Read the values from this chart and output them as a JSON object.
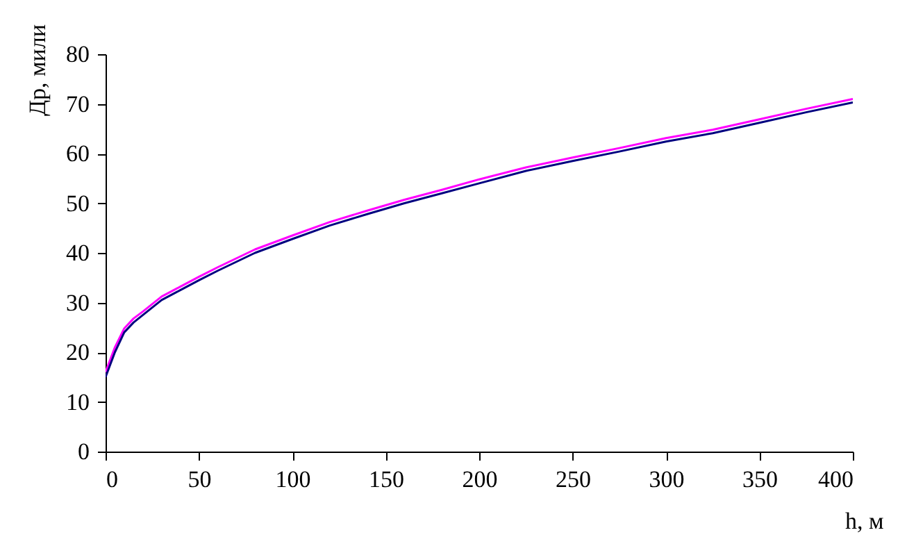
{
  "chart_data": {
    "type": "line",
    "xlabel": "h, м",
    "ylabel": "Др, мили",
    "x": [
      0,
      5,
      10,
      15,
      20,
      30,
      40,
      50,
      60,
      80,
      100,
      120,
      140,
      160,
      180,
      200,
      225,
      250,
      275,
      300,
      325,
      350,
      375,
      400
    ],
    "series": [
      {
        "color": "#ff00ff",
        "values": [
          16,
          21,
          24.8,
          26.8,
          28.2,
          31.2,
          33.2,
          35.2,
          37.1,
          40.7,
          43.5,
          46.2,
          48.5,
          50.7,
          52.7,
          54.8,
          57.2,
          59.2,
          61.1,
          63.1,
          64.8,
          66.9,
          69,
          71
        ]
      },
      {
        "color": "#000080",
        "values": [
          15,
          20,
          24,
          26,
          27.5,
          30.5,
          32.5,
          34.5,
          36.4,
          40,
          42.8,
          45.5,
          47.8,
          50,
          52,
          54,
          56.5,
          58.5,
          60.4,
          62.4,
          64.1,
          66.2,
          68.3,
          70.3
        ]
      }
    ],
    "xlim": [
      0,
      400
    ],
    "xticks": [
      0,
      50,
      100,
      150,
      200,
      250,
      300,
      350,
      400
    ],
    "ylim": [
      0,
      80
    ],
    "yticks": [
      0,
      10,
      20,
      30,
      40,
      50,
      60,
      70,
      80
    ],
    "grid": false,
    "legend": false,
    "marker": "none",
    "line_style": "solid"
  }
}
